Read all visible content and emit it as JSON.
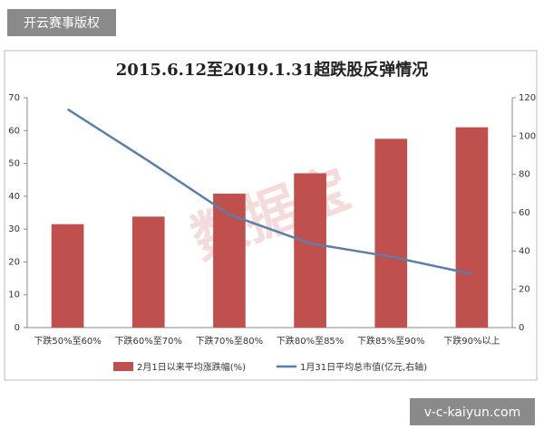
{
  "badge": "开云赛事版权",
  "footer": "v-c-kaiyun.com",
  "chart_data": {
    "type": "bar_line",
    "title": "2015.6.12至2019.1.31超跌股反弹情况",
    "watermark": "数据宝",
    "categories": [
      "下跌50%至60%",
      "下跌60%至70%",
      "下跌70%至80%",
      "下跌80%至85%",
      "下跌85%至90%",
      "下跌90%以上"
    ],
    "series": [
      {
        "name": "2月1日以来平均涨跌幅(%)",
        "type": "bar",
        "color": "#c0504d",
        "values": [
          31.5,
          33.8,
          40.8,
          47,
          57.5,
          61
        ]
      },
      {
        "name": "1月31日平均总市值(亿元,右轴)",
        "type": "line",
        "axis": "y2",
        "color": "#5b7fa6",
        "values": [
          114,
          87,
          59,
          44,
          37,
          28
        ]
      }
    ],
    "ylim": [
      0,
      70
    ],
    "yticks": [
      0,
      10,
      20,
      30,
      40,
      50,
      60,
      70
    ],
    "y2lim": [
      0,
      120
    ],
    "y2ticks": [
      0,
      20,
      40,
      60,
      80,
      100,
      120
    ],
    "legend": "bottom"
  }
}
